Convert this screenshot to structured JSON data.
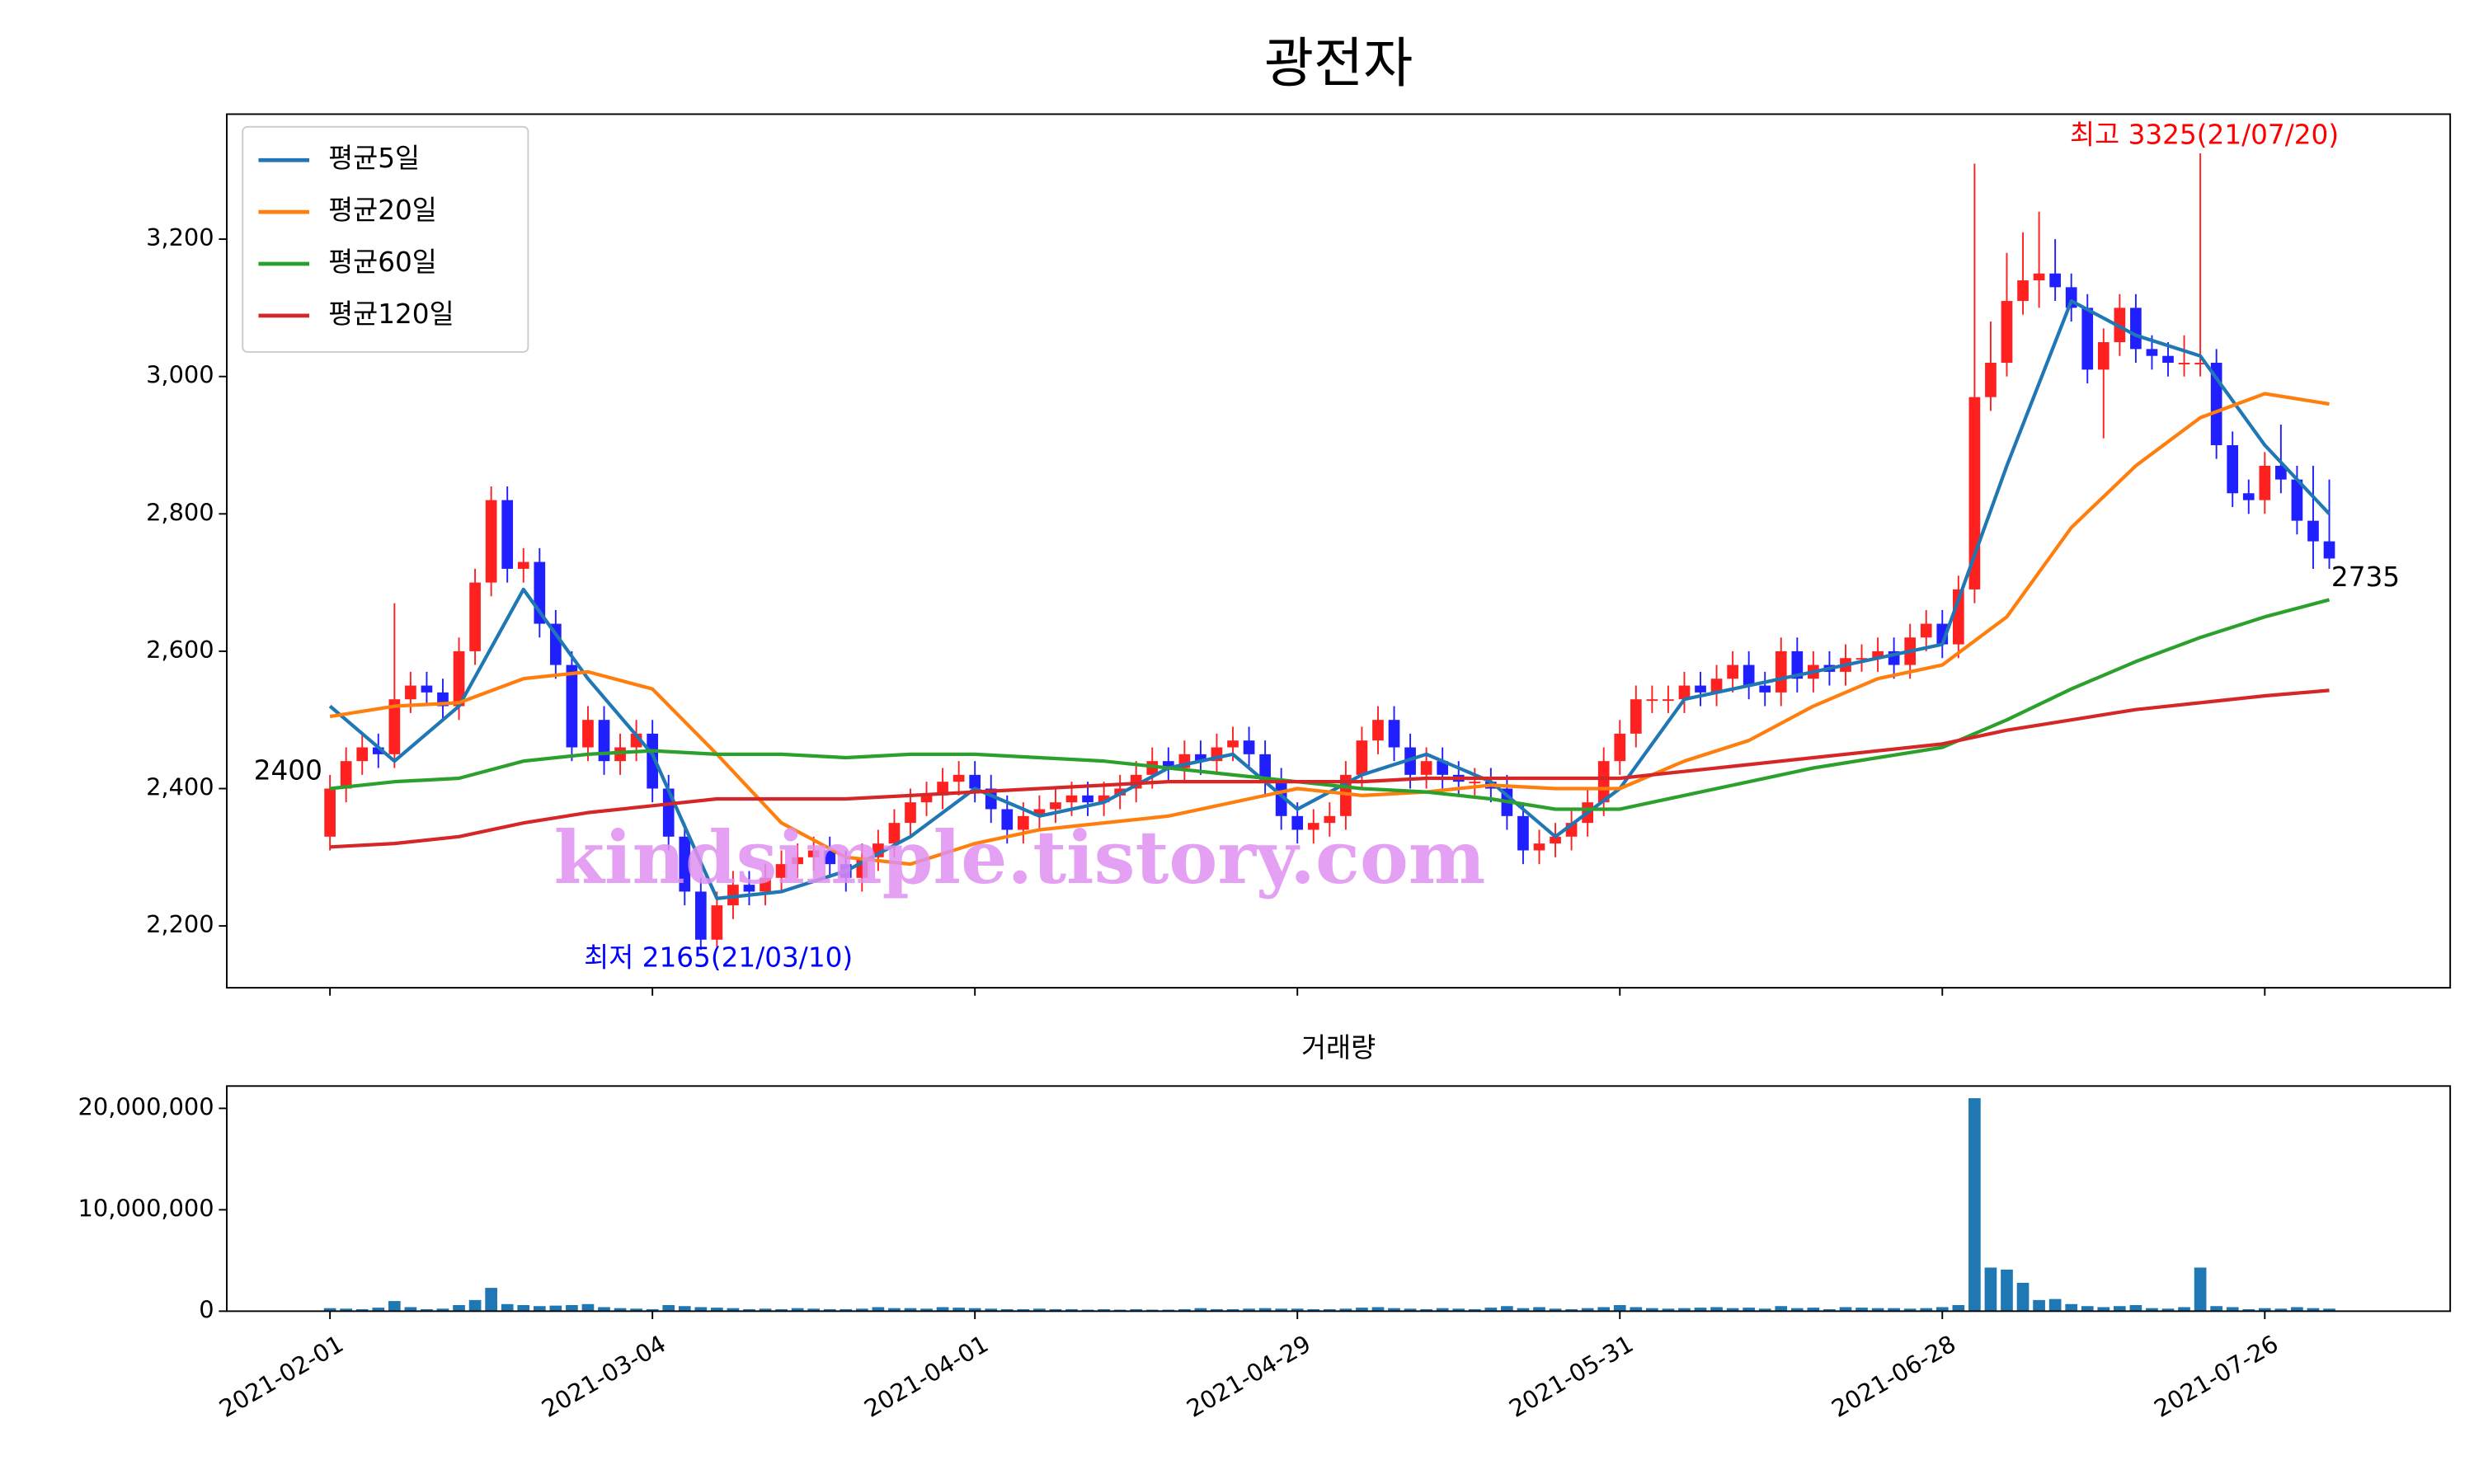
{
  "chart_data": [
    {
      "type": "candlestick",
      "title": "광전자",
      "open": [
        2330,
        2400,
        2440,
        2460,
        2450,
        2530,
        2550,
        2540,
        2520,
        2600,
        2700,
        2820,
        2720,
        2730,
        2640,
        2580,
        2460,
        2500,
        2440,
        2460,
        2480,
        2400,
        2330,
        2250,
        2180,
        2230,
        2260,
        2250,
        2270,
        2290,
        2300,
        2310,
        2290,
        2270,
        2300,
        2320,
        2350,
        2380,
        2390,
        2410,
        2420,
        2400,
        2370,
        2340,
        2360,
        2370,
        2380,
        2390,
        2380,
        2390,
        2400,
        2420,
        2440,
        2430,
        2450,
        2440,
        2460,
        2470,
        2450,
        2410,
        2360,
        2340,
        2350,
        2360,
        2420,
        2470,
        2500,
        2460,
        2420,
        2440,
        2420,
        2410,
        2410,
        2400,
        2360,
        2310,
        2320,
        2330,
        2350,
        2380,
        2440,
        2480,
        2530,
        2530,
        2530,
        2550,
        2540,
        2560,
        2580,
        2550,
        2540,
        2600,
        2560,
        2580,
        2570,
        2590,
        2590,
        2600,
        2580,
        2620,
        2640,
        2610,
        2690,
        2970,
        3020,
        3110,
        3140,
        3150,
        3130,
        3100,
        3010,
        3050,
        3100,
        3040,
        3030,
        3020,
        3020,
        3020,
        2900,
        2830,
        2820,
        2870,
        2850,
        2790,
        2760
      ],
      "high": [
        2420,
        2460,
        2480,
        2480,
        2670,
        2570,
        2570,
        2560,
        2620,
        2720,
        2840,
        2840,
        2750,
        2750,
        2660,
        2600,
        2520,
        2520,
        2480,
        2500,
        2500,
        2420,
        2350,
        2270,
        2250,
        2280,
        2280,
        2290,
        2310,
        2320,
        2330,
        2330,
        2310,
        2320,
        2340,
        2370,
        2400,
        2410,
        2430,
        2440,
        2440,
        2420,
        2390,
        2380,
        2390,
        2400,
        2410,
        2410,
        2410,
        2420,
        2440,
        2460,
        2460,
        2470,
        2470,
        2480,
        2490,
        2490,
        2470,
        2430,
        2380,
        2370,
        2380,
        2440,
        2490,
        2520,
        2520,
        2480,
        2460,
        2460,
        2440,
        2430,
        2430,
        2420,
        2380,
        2340,
        2350,
        2370,
        2400,
        2460,
        2500,
        2550,
        2550,
        2550,
        2570,
        2570,
        2580,
        2600,
        2600,
        2570,
        2620,
        2620,
        2600,
        2600,
        2610,
        2610,
        2620,
        2620,
        2640,
        2660,
        2660,
        2710,
        3310,
        3080,
        3180,
        3210,
        3240,
        3200,
        3150,
        3120,
        3070,
        3120,
        3120,
        3060,
        3050,
        3060,
        3325,
        3040,
        2920,
        2850,
        2890,
        2930,
        2870,
        2870,
        2850
      ],
      "low": [
        2310,
        2380,
        2420,
        2430,
        2430,
        2510,
        2520,
        2500,
        2500,
        2580,
        2680,
        2700,
        2700,
        2620,
        2560,
        2440,
        2440,
        2420,
        2420,
        2440,
        2380,
        2310,
        2230,
        2165,
        2170,
        2210,
        2230,
        2230,
        2250,
        2270,
        2280,
        2270,
        2250,
        2250,
        2280,
        2300,
        2330,
        2360,
        2370,
        2390,
        2380,
        2350,
        2320,
        2320,
        2340,
        2350,
        2360,
        2360,
        2360,
        2370,
        2380,
        2400,
        2410,
        2410,
        2420,
        2420,
        2440,
        2430,
        2390,
        2340,
        2320,
        2320,
        2330,
        2340,
        2400,
        2450,
        2440,
        2400,
        2400,
        2400,
        2390,
        2390,
        2380,
        2340,
        2290,
        2290,
        2300,
        2310,
        2330,
        2360,
        2420,
        2460,
        2510,
        2510,
        2510,
        2520,
        2520,
        2540,
        2530,
        2520,
        2520,
        2540,
        2540,
        2550,
        2550,
        2570,
        2570,
        2560,
        2560,
        2600,
        2590,
        2590,
        2670,
        2950,
        3000,
        3090,
        3100,
        3110,
        3080,
        2990,
        2910,
        3030,
        3020,
        3010,
        3000,
        3000,
        3000,
        2880,
        2810,
        2800,
        2800,
        2830,
        2770,
        2720,
        2720
      ],
      "close": [
        2400,
        2440,
        2460,
        2450,
        2530,
        2550,
        2540,
        2520,
        2600,
        2700,
        2820,
        2720,
        2730,
        2640,
        2580,
        2460,
        2500,
        2440,
        2460,
        2480,
        2400,
        2330,
        2250,
        2180,
        2230,
        2260,
        2250,
        2270,
        2290,
        2300,
        2310,
        2290,
        2270,
        2300,
        2320,
        2350,
        2380,
        2390,
        2410,
        2420,
        2400,
        2370,
        2340,
        2360,
        2370,
        2380,
        2390,
        2380,
        2390,
        2400,
        2420,
        2440,
        2430,
        2450,
        2440,
        2460,
        2470,
        2450,
        2410,
        2360,
        2340,
        2350,
        2360,
        2420,
        2470,
        2500,
        2460,
        2420,
        2440,
        2420,
        2410,
        2410,
        2400,
        2360,
        2310,
        2320,
        2330,
        2350,
        2380,
        2440,
        2480,
        2530,
        2530,
        2530,
        2550,
        2540,
        2560,
        2580,
        2550,
        2540,
        2600,
        2560,
        2580,
        2570,
        2590,
        2590,
        2600,
        2580,
        2620,
        2640,
        2610,
        2690,
        2970,
        3020,
        3110,
        3140,
        3150,
        3130,
        3100,
        3010,
        3050,
        3100,
        3040,
        3030,
        3020,
        3020,
        3020,
        2900,
        2830,
        2820,
        2870,
        2850,
        2790,
        2760,
        2735
      ],
      "up_color": "#ff2020",
      "down_color": "#2020ff",
      "series": [
        {
          "name": "평균5일",
          "color": "#1f77b4",
          "x": [
            0,
            4,
            8,
            12,
            16,
            20,
            24,
            28,
            32,
            36,
            40,
            44,
            48,
            52,
            56,
            60,
            64,
            68,
            72,
            76,
            80,
            84,
            88,
            92,
            96,
            100,
            104,
            108,
            112,
            116,
            120,
            124
          ],
          "values": [
            2520,
            2440,
            2520,
            2690,
            2560,
            2450,
            2240,
            2250,
            2280,
            2330,
            2400,
            2360,
            2380,
            2430,
            2450,
            2370,
            2420,
            2450,
            2410,
            2330,
            2400,
            2530,
            2550,
            2570,
            2590,
            2610,
            2870,
            3110,
            3060,
            3030,
            2900,
            2800
          ]
        },
        {
          "name": "평균20일",
          "color": "#ff7f0e",
          "x": [
            0,
            4,
            8,
            12,
            16,
            20,
            24,
            28,
            32,
            36,
            40,
            44,
            48,
            52,
            56,
            60,
            64,
            68,
            72,
            76,
            80,
            84,
            88,
            92,
            96,
            100,
            104,
            108,
            112,
            116,
            120,
            124
          ],
          "values": [
            2505,
            2520,
            2525,
            2560,
            2570,
            2545,
            2450,
            2350,
            2300,
            2290,
            2320,
            2340,
            2350,
            2360,
            2380,
            2400,
            2390,
            2395,
            2405,
            2400,
            2400,
            2440,
            2470,
            2520,
            2560,
            2580,
            2650,
            2780,
            2870,
            2940,
            2975,
            2960
          ]
        },
        {
          "name": "평균60일",
          "color": "#2ca02c",
          "x": [
            0,
            4,
            8,
            12,
            16,
            20,
            24,
            28,
            32,
            36,
            40,
            44,
            48,
            52,
            56,
            60,
            64,
            68,
            72,
            76,
            80,
            84,
            88,
            92,
            96,
            100,
            104,
            108,
            112,
            116,
            120,
            124
          ],
          "values": [
            2400,
            2410,
            2415,
            2440,
            2450,
            2455,
            2450,
            2450,
            2445,
            2450,
            2450,
            2445,
            2440,
            2430,
            2420,
            2410,
            2400,
            2395,
            2385,
            2370,
            2370,
            2390,
            2410,
            2430,
            2445,
            2460,
            2500,
            2545,
            2585,
            2620,
            2650,
            2675
          ]
        },
        {
          "name": "평균120일",
          "color": "#d62728",
          "x": [
            0,
            4,
            8,
            12,
            16,
            20,
            24,
            28,
            32,
            36,
            40,
            44,
            48,
            52,
            56,
            60,
            64,
            68,
            72,
            76,
            80,
            84,
            88,
            92,
            96,
            100,
            104,
            108,
            112,
            116,
            120,
            124
          ],
          "values": [
            2315,
            2320,
            2330,
            2350,
            2365,
            2375,
            2385,
            2385,
            2385,
            2390,
            2395,
            2400,
            2405,
            2410,
            2410,
            2410,
            2410,
            2415,
            2415,
            2415,
            2415,
            2425,
            2435,
            2445,
            2455,
            2465,
            2485,
            2500,
            2515,
            2525,
            2535,
            2543
          ]
        }
      ],
      "xlim": [
        -6.4,
        131.5
      ],
      "xticks": [
        0,
        20,
        40,
        60,
        80,
        100,
        120
      ],
      "ylim": [
        2110,
        3382
      ],
      "yticks": [
        {
          "value": 2200,
          "label": "2,200"
        },
        {
          "value": 2400,
          "label": "2,400"
        },
        {
          "value": 2600,
          "label": "2,600"
        },
        {
          "value": 2800,
          "label": "2,800"
        },
        {
          "value": 3000,
          "label": "3,000"
        },
        {
          "value": 3200,
          "label": "3,200"
        }
      ],
      "legend": "upper left",
      "annotations": [
        {
          "text": "최고 3325(21/07/20)",
          "color": "#ff0000"
        },
        {
          "text": "최저 2165(21/03/10)",
          "color": "#0000ff"
        },
        {
          "text": "2400",
          "color": "#000000"
        },
        {
          "text": "2735",
          "color": "#000000"
        }
      ],
      "watermark": "kindsimple.tistory.com"
    },
    {
      "type": "bar",
      "title": "거래량",
      "color": "#1f77b4",
      "values": [
        300000,
        250000,
        200000,
        350000,
        1000000,
        400000,
        200000,
        250000,
        600000,
        1100000,
        2300000,
        700000,
        600000,
        500000,
        550000,
        600000,
        700000,
        400000,
        300000,
        250000,
        200000,
        600000,
        500000,
        400000,
        350000,
        300000,
        200000,
        250000,
        200000,
        300000,
        250000,
        200000,
        200000,
        250000,
        400000,
        300000,
        300000,
        250000,
        400000,
        350000,
        300000,
        250000,
        200000,
        200000,
        250000,
        200000,
        200000,
        150000,
        200000,
        150000,
        200000,
        150000,
        150000,
        200000,
        300000,
        200000,
        200000,
        250000,
        300000,
        250000,
        250000,
        200000,
        200000,
        250000,
        350000,
        400000,
        300000,
        250000,
        200000,
        300000,
        250000,
        200000,
        350000,
        500000,
        300000,
        400000,
        250000,
        200000,
        300000,
        400000,
        600000,
        400000,
        300000,
        250000,
        300000,
        350000,
        400000,
        300000,
        350000,
        250000,
        500000,
        300000,
        350000,
        200000,
        400000,
        350000,
        300000,
        300000,
        250000,
        300000,
        400000,
        600000,
        21000000,
        4300000,
        4100000,
        2800000,
        1100000,
        1200000,
        700000,
        500000,
        400000,
        500000,
        600000,
        300000,
        250000,
        400000,
        4300000,
        500000,
        400000,
        200000,
        300000,
        250000,
        400000,
        300000,
        250000
      ],
      "xlim": [
        -6.4,
        131.5
      ],
      "xticks": [
        {
          "value": 0,
          "label": "2021-02-01"
        },
        {
          "value": 20,
          "label": "2021-03-04"
        },
        {
          "value": 40,
          "label": "2021-04-01"
        },
        {
          "value": 60,
          "label": "2021-04-29"
        },
        {
          "value": 80,
          "label": "2021-05-31"
        },
        {
          "value": 100,
          "label": "2021-06-28"
        },
        {
          "value": 120,
          "label": "2021-07-26"
        }
      ],
      "ylim": [
        0,
        22200000
      ],
      "yticks": [
        0,
        {
          "value": 10000000,
          "label": "10,000,000"
        },
        {
          "value": 20000000,
          "label": "20,000,000"
        }
      ]
    }
  ]
}
